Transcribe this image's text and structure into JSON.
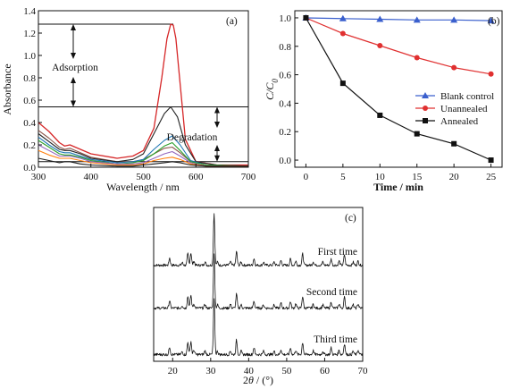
{
  "chart_data": [
    {
      "panel_label": "(a)",
      "type": "line",
      "xlabel": "Wavelength / nm",
      "ylabel": "Absorbance",
      "xlim": [
        300,
        700
      ],
      "ylim": [
        0,
        1.4
      ],
      "xticks": [
        "300",
        "400",
        "500",
        "600",
        "700"
      ],
      "yticks": [
        "0.0",
        "0.2",
        "0.4",
        "0.6",
        "0.8",
        "1.0",
        "1.2",
        "1.4"
      ],
      "annotations": [
        "Adsorption",
        "Degradation"
      ],
      "reference_levels": [
        1.28,
        0.54,
        0.05
      ],
      "series": [
        {
          "color": "#d62728",
          "x": [
            300,
            320,
            340,
            350,
            360,
            380,
            400,
            450,
            480,
            500,
            520,
            535,
            545,
            552,
            557,
            562,
            570,
            580,
            600,
            640,
            700
          ],
          "y": [
            0.4,
            0.32,
            0.22,
            0.19,
            0.2,
            0.16,
            0.12,
            0.08,
            0.1,
            0.15,
            0.35,
            0.8,
            1.15,
            1.28,
            1.27,
            1.15,
            0.75,
            0.25,
            0.05,
            0.02,
            0.02
          ]
        },
        {
          "color": "#8c564b",
          "x": [
            300,
            320,
            340,
            350,
            360,
            380,
            400,
            450,
            480,
            500,
            520,
            540,
            555,
            570,
            590,
            620,
            700
          ],
          "y": [
            0.33,
            0.26,
            0.18,
            0.16,
            0.17,
            0.13,
            0.09,
            0.05,
            0.05,
            0.07,
            0.12,
            0.17,
            0.18,
            0.13,
            0.05,
            0.02,
            0.01
          ]
        },
        {
          "color": "#222222",
          "x": [
            300,
            320,
            340,
            350,
            360,
            380,
            400,
            450,
            480,
            500,
            520,
            540,
            552,
            565,
            580,
            600,
            640,
            700
          ],
          "y": [
            0.3,
            0.23,
            0.16,
            0.15,
            0.15,
            0.12,
            0.08,
            0.05,
            0.07,
            0.12,
            0.3,
            0.48,
            0.54,
            0.45,
            0.2,
            0.05,
            0.02,
            0.01
          ]
        },
        {
          "color": "#1f77b4",
          "x": [
            300,
            320,
            340,
            350,
            360,
            380,
            400,
            450,
            480,
            500,
            520,
            540,
            555,
            570,
            590,
            620,
            700
          ],
          "y": [
            0.27,
            0.2,
            0.14,
            0.13,
            0.13,
            0.1,
            0.07,
            0.04,
            0.05,
            0.07,
            0.16,
            0.24,
            0.28,
            0.2,
            0.06,
            0.02,
            0.01
          ]
        },
        {
          "color": "#2ca02c",
          "x": [
            300,
            320,
            340,
            350,
            360,
            380,
            400,
            450,
            480,
            500,
            520,
            540,
            555,
            570,
            590,
            620,
            700
          ],
          "y": [
            0.24,
            0.18,
            0.12,
            0.11,
            0.11,
            0.09,
            0.06,
            0.03,
            0.04,
            0.06,
            0.12,
            0.19,
            0.22,
            0.15,
            0.05,
            0.02,
            0.01
          ]
        },
        {
          "color": "#9467bd",
          "x": [
            300,
            320,
            340,
            350,
            360,
            380,
            400,
            450,
            480,
            500,
            520,
            540,
            555,
            570,
            590,
            620,
            700
          ],
          "y": [
            0.2,
            0.15,
            0.1,
            0.1,
            0.1,
            0.08,
            0.05,
            0.03,
            0.03,
            0.04,
            0.08,
            0.12,
            0.14,
            0.1,
            0.04,
            0.01,
            0.01
          ]
        },
        {
          "color": "#ff7f0e",
          "x": [
            300,
            320,
            340,
            350,
            360,
            380,
            400,
            450,
            480,
            500,
            520,
            540,
            555,
            570,
            590,
            620,
            700
          ],
          "y": [
            0.15,
            0.11,
            0.08,
            0.08,
            0.08,
            0.06,
            0.04,
            0.02,
            0.02,
            0.03,
            0.06,
            0.08,
            0.09,
            0.07,
            0.03,
            0.01,
            0.01
          ]
        },
        {
          "color": "#1a1a1a",
          "x": [
            300,
            320,
            340,
            350,
            360,
            380,
            400,
            450,
            480,
            500,
            520,
            540,
            555,
            570,
            590,
            620,
            700
          ],
          "y": [
            0.08,
            0.06,
            0.04,
            0.05,
            0.05,
            0.03,
            0.02,
            0.01,
            0.01,
            0.02,
            0.03,
            0.04,
            0.05,
            0.04,
            0.02,
            0.01,
            0.01
          ]
        }
      ]
    },
    {
      "panel_label": "(b)",
      "type": "line",
      "xlabel": "Time / min",
      "ylabel": "C/C0",
      "xlim": [
        -1.5,
        26.5
      ],
      "ylim": [
        -0.05,
        1.05
      ],
      "xticks": [
        "0",
        "5",
        "10",
        "15",
        "20",
        "25"
      ],
      "yticks": [
        "0.0",
        "0.2",
        "0.4",
        "0.6",
        "0.8",
        "1.0"
      ],
      "legend_position": "right",
      "x": [
        0,
        5,
        10,
        15,
        20,
        25
      ],
      "series": [
        {
          "name": "Blank control",
          "color": "#3a5fcd",
          "marker": "triangle",
          "values": [
            1.0,
            0.995,
            0.99,
            0.985,
            0.985,
            0.98
          ]
        },
        {
          "name": "Unannealed",
          "color": "#e03030",
          "marker": "circle",
          "values": [
            1.0,
            0.89,
            0.805,
            0.72,
            0.65,
            0.605
          ]
        },
        {
          "name": "Annealed",
          "color": "#111111",
          "marker": "square",
          "values": [
            1.0,
            0.54,
            0.315,
            0.185,
            0.115,
            0.0
          ]
        }
      ]
    },
    {
      "panel_label": "(c)",
      "type": "line",
      "xlabel": "2θ / (°)",
      "xlim": [
        15,
        70
      ],
      "xticks": [
        "20",
        "30",
        "40",
        "50",
        "60",
        "70"
      ],
      "peaks_2theta": [
        19.2,
        22.5,
        24.0,
        24.8,
        25.6,
        28.5,
        30.9,
        31.8,
        35.2,
        36.8,
        38.0,
        41.4,
        43.9,
        46.7,
        48.5,
        51.0,
        52.4,
        54.2,
        57.0,
        59.5,
        61.7,
        63.8,
        65.2,
        67.5,
        68.8
      ],
      "peak_intensities": [
        0.14,
        0.05,
        0.22,
        0.24,
        0.08,
        0.07,
        1.0,
        0.06,
        0.07,
        0.26,
        0.06,
        0.13,
        0.06,
        0.06,
        0.09,
        0.12,
        0.08,
        0.22,
        0.07,
        0.06,
        0.12,
        0.08,
        0.2,
        0.06,
        0.08
      ],
      "series": [
        {
          "name": "First time"
        },
        {
          "name": "Second time"
        },
        {
          "name": "Third time"
        }
      ]
    }
  ]
}
